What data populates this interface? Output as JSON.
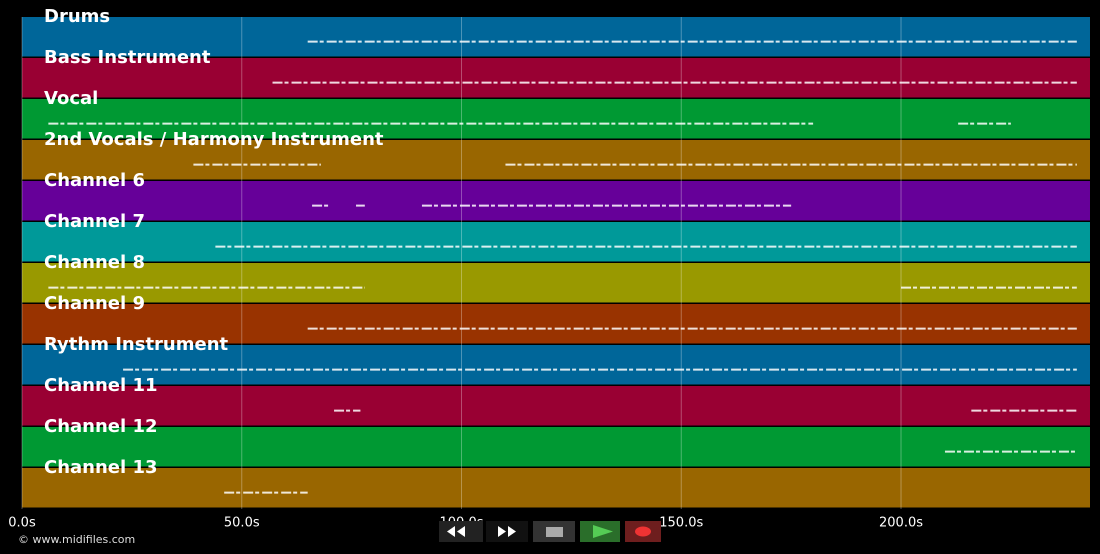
{
  "tracks": [
    {
      "name": "Drums",
      "color": "#006699",
      "spans": [
        [
          65,
          240
        ]
      ]
    },
    {
      "name": "Bass Instrument",
      "color": "#990033",
      "spans": [
        [
          57,
          240
        ]
      ]
    },
    {
      "name": "Vocal",
      "color": "#009933",
      "spans": [
        [
          6,
          180
        ],
        [
          213,
          225
        ]
      ]
    },
    {
      "name": "2nd Vocals / Harmony Instrument",
      "color": "#996600",
      "spans": [
        [
          39,
          68
        ],
        [
          110,
          240
        ]
      ]
    },
    {
      "name": "Channel 6",
      "color": "#660099",
      "spans": [
        [
          66,
          70
        ],
        [
          76,
          78
        ],
        [
          91,
          175
        ]
      ]
    },
    {
      "name": "Channel 7",
      "color": "#009999",
      "spans": [
        [
          44,
          240
        ]
      ]
    },
    {
      "name": "Channel 8",
      "color": "#999900",
      "spans": [
        [
          6,
          78
        ],
        [
          200,
          240
        ]
      ]
    },
    {
      "name": "Channel 9",
      "color": "#993300",
      "spans": [
        [
          65,
          240
        ]
      ]
    },
    {
      "name": "Rythm Instrument",
      "color": "#006699",
      "spans": [
        [
          23,
          240
        ]
      ]
    },
    {
      "name": "Channel 11",
      "color": "#990033",
      "spans": [
        [
          71,
          77
        ],
        [
          216,
          240
        ]
      ]
    },
    {
      "name": "Channel 12",
      "color": "#009933",
      "spans": [
        [
          210,
          240
        ]
      ]
    },
    {
      "name": "Channel 13",
      "color": "#996600",
      "spans": [
        [
          46,
          65
        ]
      ]
    }
  ],
  "xaxis": {
    "xlim": [
      0,
      243
    ],
    "xticks": [
      {
        "value": 0,
        "label": "0.0s"
      },
      {
        "value": 50,
        "label": "50.0s"
      },
      {
        "value": 100,
        "label": "100.0s"
      },
      {
        "value": 150,
        "label": "150.0s"
      },
      {
        "value": 200,
        "label": "200.0s"
      }
    ]
  },
  "footer": "© www.midifiles.com"
}
